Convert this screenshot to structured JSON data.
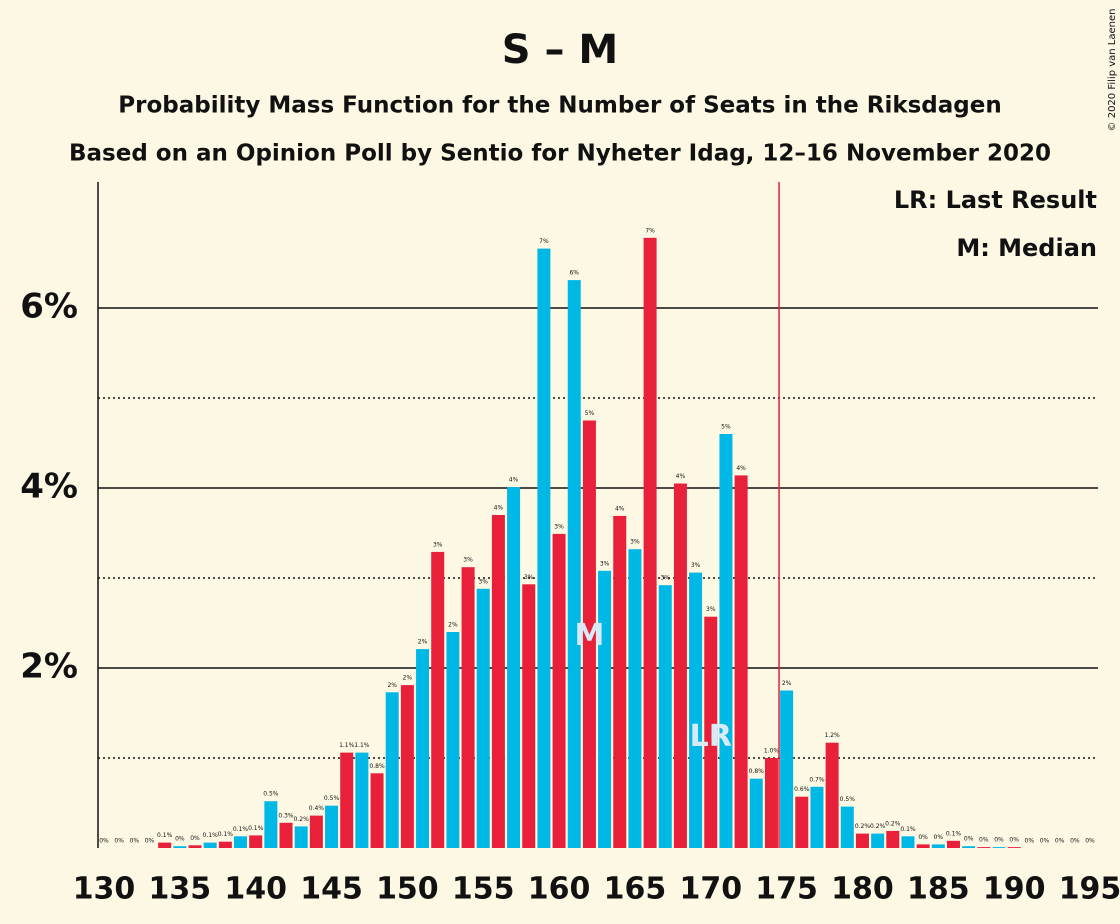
{
  "chart_data": {
    "type": "bar",
    "title": "S – M",
    "subtitle": "Probability Mass Function for the Number of Seats in the Riksdagen",
    "subtitle2": "Based on an Opinion Poll by Sentio for Nyheter Idag, 12–16 November 2020",
    "copyright": "© 2020 Filip van Laenen",
    "x": [
      130,
      131,
      132,
      133,
      134,
      135,
      136,
      137,
      138,
      139,
      140,
      141,
      142,
      143,
      144,
      145,
      146,
      147,
      148,
      149,
      150,
      151,
      152,
      153,
      154,
      155,
      156,
      157,
      158,
      159,
      160,
      161,
      162,
      163,
      164,
      165,
      166,
      167,
      168,
      169,
      170,
      171,
      172,
      173,
      174,
      175,
      176,
      177,
      178,
      179,
      180,
      181,
      182,
      183,
      184,
      185,
      186,
      187,
      188,
      189,
      190,
      191,
      192,
      193,
      194,
      195
    ],
    "values": [
      0,
      0,
      0,
      0,
      0.06,
      0.02,
      0.03,
      0.06,
      0.07,
      0.13,
      0.14,
      0.52,
      0.28,
      0.24,
      0.36,
      0.47,
      1.06,
      1.06,
      0.83,
      1.73,
      1.81,
      2.21,
      3.29,
      2.4,
      3.12,
      2.88,
      3.7,
      4.01,
      2.93,
      6.66,
      3.49,
      6.31,
      4.75,
      3.08,
      3.69,
      3.32,
      6.78,
      2.92,
      4.05,
      3.06,
      2.57,
      4.6,
      4.14,
      0.77,
      1.0,
      1.75,
      0.57,
      0.68,
      1.17,
      0.46,
      0.16,
      0.16,
      0.19,
      0.13,
      0.04,
      0.04,
      0.08,
      0.02,
      0.01,
      0.01,
      0.01,
      0,
      0,
      0,
      0,
      0
    ],
    "value_labels": [
      "0%",
      "0%",
      "0%",
      "0%",
      "0.1%",
      "0%",
      "0%",
      "0.1%",
      "0.1%",
      "0.1%",
      "0.1%",
      "0.5%",
      "0.3%",
      "0.2%",
      "0.4%",
      "0.5%",
      "1.1%",
      "1.1%",
      "0.8%",
      "2%",
      "2%",
      "2%",
      "3%",
      "2%",
      "3%",
      "3%",
      "4%",
      "4%",
      "3%",
      "7%",
      "3%",
      "6%",
      "5%",
      "3%",
      "4%",
      "3%",
      "7%",
      "3%",
      "4%",
      "3%",
      "3%",
      "5%",
      "4%",
      "0.8%",
      "1.0%",
      "2%",
      "0.6%",
      "0.7%",
      "1.2%",
      "0.5%",
      "0.2%",
      "0.2%",
      "0.2%",
      "0.1%",
      "0%",
      "0%",
      "0.1%",
      "0%",
      "0%",
      "0%",
      "0%",
      "0%",
      "0%",
      "0%",
      "0%",
      "0%"
    ],
    "colors": [
      "#e8203a",
      "#00b8e6"
    ],
    "xlim": [
      130,
      195
    ],
    "xticks": [
      130,
      135,
      140,
      145,
      150,
      155,
      160,
      165,
      170,
      175,
      180,
      185,
      190,
      195
    ],
    "ylim": [
      0,
      7.4
    ],
    "yticks": [
      {
        "value": 2,
        "label": "2%"
      },
      {
        "value": 4,
        "label": "4%"
      },
      {
        "value": 6,
        "label": "6%"
      }
    ],
    "yminor": [
      1,
      3,
      5
    ],
    "majority": 175,
    "last_result": 170,
    "last_result_label": "LR",
    "median": 162,
    "median_label": "M",
    "legend": [
      "LR: Last Result",
      "M: Median"
    ]
  }
}
